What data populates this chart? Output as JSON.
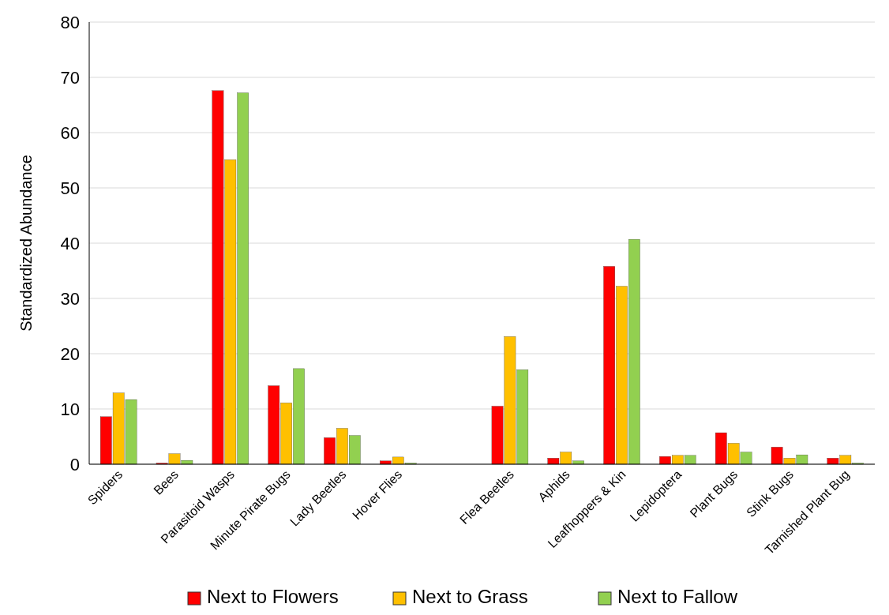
{
  "chart_data": {
    "type": "bar",
    "ylabel": "Standardized Abundance",
    "categories": [
      "Spiders",
      "Bees",
      "Parasitoid Wasps",
      "Minute Pirate Bugs",
      "Lady Beetles",
      "Hover Flies",
      null,
      "Flea Beetles",
      "Aphids",
      "Leafhoppers & Kin",
      "Lepidoptera",
      "Plant Bugs",
      "Stink Bugs",
      "Tarnished Plant Bug"
    ],
    "series": [
      {
        "name": "Next to Flowers",
        "color": "#ff0000",
        "values": [
          8.6,
          0.2,
          67.6,
          14.2,
          4.8,
          0.6,
          null,
          10.5,
          1.1,
          35.8,
          1.4,
          5.7,
          3.1,
          1.1
        ]
      },
      {
        "name": "Next to Grass",
        "color": "#ffc000",
        "values": [
          12.9,
          1.9,
          55.1,
          11.1,
          6.5,
          1.3,
          null,
          23.1,
          2.2,
          32.2,
          1.6,
          3.8,
          1.1,
          1.6
        ]
      },
      {
        "name": "Next to Fallow",
        "color": "#92d050",
        "values": [
          11.7,
          0.7,
          67.2,
          17.3,
          5.2,
          0.2,
          null,
          17.1,
          0.6,
          40.7,
          1.6,
          2.2,
          1.7,
          0.2
        ]
      }
    ],
    "ylim": [
      0,
      80
    ],
    "yticks": [
      0,
      10,
      20,
      30,
      40,
      50,
      60,
      70,
      80
    ],
    "grid": "y",
    "legend": "bottom"
  }
}
